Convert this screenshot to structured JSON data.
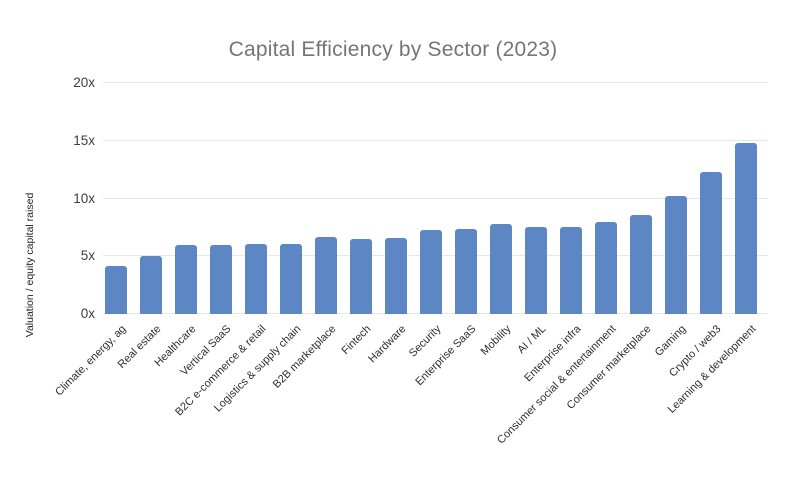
{
  "chart_data": {
    "type": "bar",
    "title": "Capital Efficiency by Sector (2023)",
    "xlabel": "",
    "ylabel": "Valuation / equity capital raised",
    "categories": [
      "Climate, energy, ag",
      "Real estate",
      "Healthcare",
      "Vertical SaaS",
      "B2C e-commerce & retail",
      "Logistics & supply chain",
      "B2B marketplace",
      "Fintech",
      "Hardware",
      "Security",
      "Enterprise SaaS",
      "Mobility",
      "AI / ML",
      "Enterprise infra",
      "Consumer social & entertainment",
      "Consumer marketplace",
      "Gaming",
      "Crypto / web3",
      "Learning & development"
    ],
    "values": [
      4.2,
      5.0,
      6.0,
      6.0,
      6.1,
      6.1,
      6.7,
      6.5,
      6.6,
      7.3,
      7.4,
      7.8,
      7.5,
      7.5,
      8.0,
      8.6,
      10.2,
      12.3,
      14.8
    ],
    "ylim": [
      0,
      20
    ],
    "yticks": [
      0,
      5,
      10,
      15,
      20
    ],
    "ytick_labels": [
      "0x",
      "5x",
      "10x",
      "15x",
      "20x"
    ],
    "grid": true,
    "legend": false,
    "bar_color": "#5d86c5",
    "colors": {
      "title": "#757575",
      "axis_title": "#1f1f1f",
      "tick_label": "#3d3d3d",
      "category_label": "#2e2e2e",
      "gridline": "#e7e7e7",
      "background": "#ffffff"
    }
  }
}
